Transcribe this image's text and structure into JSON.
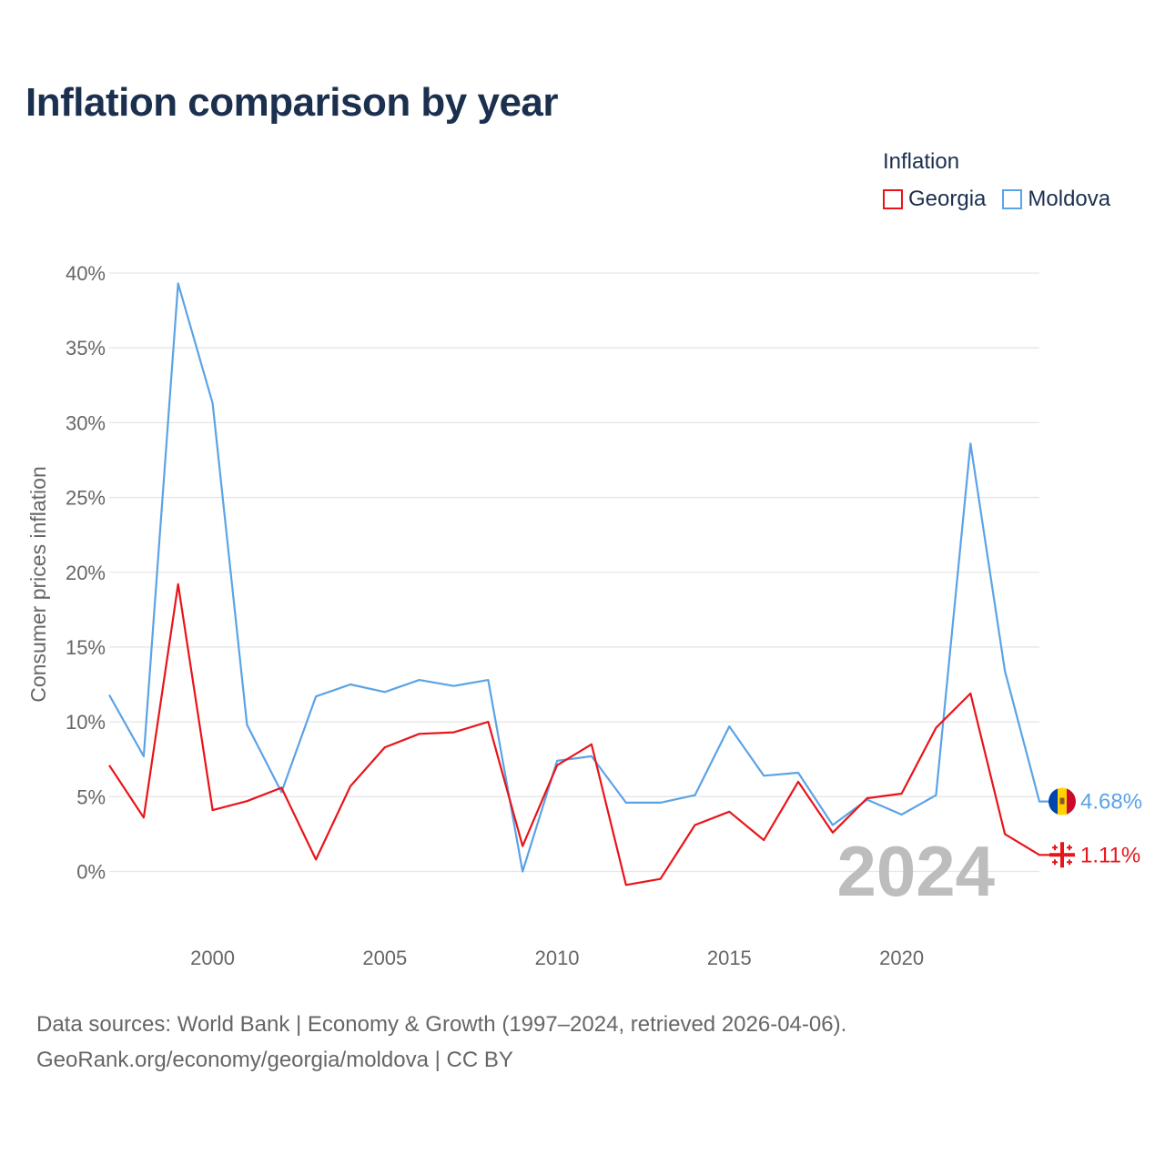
{
  "title": "Inflation comparison by year",
  "legend": {
    "title": "Inflation",
    "items": [
      {
        "label": "Georgia",
        "color": "#e8141a"
      },
      {
        "label": "Moldova",
        "color": "#5ba3e6"
      }
    ]
  },
  "footer": {
    "line1": "Data sources: World Bank | Economy & Growth (1997–2024, retrieved 2026-04-06).",
    "line2": "GeoRank.org/economy/georgia/moldova | CC BY"
  },
  "chart_data": {
    "type": "line",
    "title": "Inflation comparison by year",
    "xlabel": "",
    "ylabel": "Consumer prices inflation",
    "x": [
      1997,
      1998,
      1999,
      2000,
      2001,
      2002,
      2003,
      2004,
      2005,
      2006,
      2007,
      2008,
      2009,
      2010,
      2011,
      2012,
      2013,
      2014,
      2015,
      2016,
      2017,
      2018,
      2019,
      2020,
      2021,
      2022,
      2023,
      2024
    ],
    "xlim": [
      1997,
      2024
    ],
    "ylim": [
      -4,
      41
    ],
    "xticks": [
      2000,
      2005,
      2010,
      2015,
      2020
    ],
    "xtick_labels": [
      "2000",
      "2005",
      "2010",
      "2015",
      "2020"
    ],
    "yticks": [
      0,
      5,
      10,
      15,
      20,
      25,
      30,
      35,
      40
    ],
    "ytick_labels": [
      "0%",
      "5%",
      "10%",
      "15%",
      "20%",
      "25%",
      "30%",
      "35%",
      "40%"
    ],
    "grid": true,
    "current_year_label": "2024",
    "series": [
      {
        "name": "Georgia",
        "color": "#e8141a",
        "end_label": "1.11%",
        "flag": "georgia-flag-icon",
        "values": [
          7.1,
          3.6,
          19.2,
          4.1,
          4.7,
          5.6,
          0.8,
          5.7,
          8.3,
          9.2,
          9.3,
          10.0,
          1.7,
          7.1,
          8.5,
          -0.9,
          -0.5,
          3.1,
          4.0,
          2.1,
          6.0,
          2.6,
          4.9,
          5.2,
          9.6,
          11.9,
          2.5,
          1.11
        ]
      },
      {
        "name": "Moldova",
        "color": "#5ba3e6",
        "end_label": "4.68%",
        "flag": "moldova-flag-icon",
        "values": [
          11.8,
          7.7,
          39.3,
          31.3,
          9.8,
          5.3,
          11.7,
          12.5,
          12.0,
          12.8,
          12.4,
          12.8,
          0.0,
          7.4,
          7.7,
          4.6,
          4.6,
          5.1,
          9.7,
          6.4,
          6.6,
          3.1,
          4.8,
          3.8,
          5.1,
          28.6,
          13.4,
          4.68
        ]
      }
    ]
  }
}
